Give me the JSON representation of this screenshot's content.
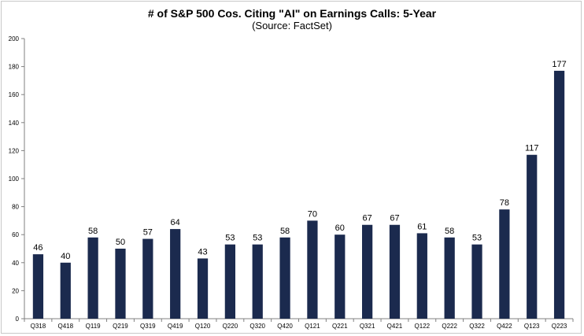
{
  "chart_data": {
    "type": "bar",
    "title": "# of S&P 500 Cos. Citing \"AI\" on Earnings Calls: 5-Year",
    "subtitle": "(Source: FactSet)",
    "categories": [
      "Q318",
      "Q418",
      "Q119",
      "Q219",
      "Q319",
      "Q419",
      "Q120",
      "Q220",
      "Q320",
      "Q420",
      "Q121",
      "Q221",
      "Q321",
      "Q421",
      "Q122",
      "Q222",
      "Q322",
      "Q422",
      "Q123",
      "Q223"
    ],
    "values": [
      46,
      40,
      58,
      50,
      57,
      64,
      43,
      53,
      53,
      58,
      70,
      60,
      67,
      67,
      61,
      58,
      53,
      78,
      117,
      177
    ],
    "yticks": [
      "0",
      "20",
      "40",
      "60",
      "80",
      "100",
      "120",
      "140",
      "160",
      "180",
      "200"
    ],
    "ylim": [
      0,
      200
    ],
    "bar_color": "#1b2a4e",
    "grid": false,
    "legend": "none"
  }
}
